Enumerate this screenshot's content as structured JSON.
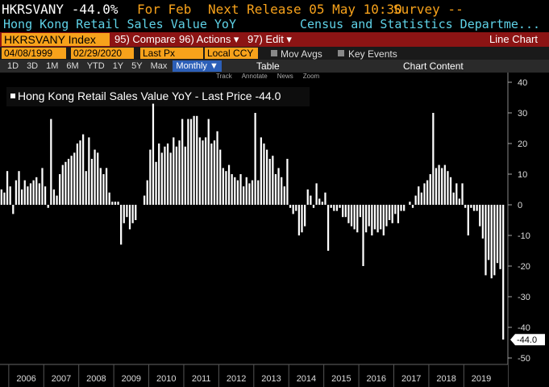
{
  "header": {
    "ticker_quote": "HKRSVANY -44.0%",
    "period": "For Feb",
    "next_release": "Next Release 05 May 10:30",
    "survey": "Survey --",
    "description": "Hong Kong Retail Sales Value YoY",
    "source": "Census and Statistics Departme..."
  },
  "toolbar": {
    "security": "HKRSVANY Index",
    "buttons": [
      "95) Compare",
      "96) Actions ▾",
      "97) Edit ▾"
    ],
    "view": "Line Chart",
    "start_date": "04/08/1999",
    "end_date": "02/29/2020",
    "field": "Last Px",
    "currency": "Local CCY",
    "mov_avgs": "Mov Avgs",
    "key_events": "Key Events",
    "ranges": [
      "1D",
      "3D",
      "1M",
      "6M",
      "YTD",
      "1Y",
      "5Y",
      "Max"
    ],
    "frequency": "Monthly ▼",
    "table": "Table",
    "chart_content": "Chart Content",
    "tools": [
      "Track",
      "Annotate",
      "News",
      "Zoom"
    ]
  },
  "chart_data": {
    "type": "bar",
    "legend": "Hong Kong Retail Sales Value YoY - Last Price -44.0",
    "last_price_label": "-44.0",
    "color": "#ffffff",
    "x": [
      "2005-10",
      "2005-11",
      "2005-12",
      "2006-01",
      "2006-02",
      "2006-03",
      "2006-04",
      "2006-05",
      "2006-06",
      "2006-07",
      "2006-08",
      "2006-09",
      "2006-10",
      "2006-11",
      "2006-12",
      "2007-01",
      "2007-02",
      "2007-03",
      "2007-04",
      "2007-05",
      "2007-06",
      "2007-07",
      "2007-08",
      "2007-09",
      "2007-10",
      "2007-11",
      "2007-12",
      "2008-01",
      "2008-02",
      "2008-03",
      "2008-04",
      "2008-05",
      "2008-06",
      "2008-07",
      "2008-08",
      "2008-09",
      "2008-10",
      "2008-11",
      "2008-12",
      "2009-01",
      "2009-02",
      "2009-03",
      "2009-04",
      "2009-05",
      "2009-06",
      "2009-07",
      "2009-08",
      "2009-09",
      "2009-10",
      "2009-11",
      "2009-12",
      "2010-01",
      "2010-02",
      "2010-03",
      "2010-04",
      "2010-05",
      "2010-06",
      "2010-07",
      "2010-08",
      "2010-09",
      "2010-10",
      "2010-11",
      "2010-12",
      "2011-01",
      "2011-02",
      "2011-03",
      "2011-04",
      "2011-05",
      "2011-06",
      "2011-07",
      "2011-08",
      "2011-09",
      "2011-10",
      "2011-11",
      "2011-12",
      "2012-01",
      "2012-02",
      "2012-03",
      "2012-04",
      "2012-05",
      "2012-06",
      "2012-07",
      "2012-08",
      "2012-09",
      "2012-10",
      "2012-11",
      "2012-12",
      "2013-01",
      "2013-02",
      "2013-03",
      "2013-04",
      "2013-05",
      "2013-06",
      "2013-07",
      "2013-08",
      "2013-09",
      "2013-10",
      "2013-11",
      "2013-12",
      "2014-01",
      "2014-02",
      "2014-03",
      "2014-04",
      "2014-05",
      "2014-06",
      "2014-07",
      "2014-08",
      "2014-09",
      "2014-10",
      "2014-11",
      "2014-12",
      "2015-01",
      "2015-02",
      "2015-03",
      "2015-04",
      "2015-05",
      "2015-06",
      "2015-07",
      "2015-08",
      "2015-09",
      "2015-10",
      "2015-11",
      "2015-12",
      "2016-01",
      "2016-02",
      "2016-03",
      "2016-04",
      "2016-05",
      "2016-06",
      "2016-07",
      "2016-08",
      "2016-09",
      "2016-10",
      "2016-11",
      "2016-12",
      "2017-01",
      "2017-02",
      "2017-03",
      "2017-04",
      "2017-05",
      "2017-06",
      "2017-07",
      "2017-08",
      "2017-09",
      "2017-10",
      "2017-11",
      "2017-12",
      "2018-01",
      "2018-02",
      "2018-03",
      "2018-04",
      "2018-05",
      "2018-06",
      "2018-07",
      "2018-08",
      "2018-09",
      "2018-10",
      "2018-11",
      "2018-12",
      "2019-01",
      "2019-02",
      "2019-03",
      "2019-04",
      "2019-05",
      "2019-06",
      "2019-07",
      "2019-08",
      "2019-09",
      "2019-10",
      "2019-11",
      "2019-12",
      "2020-01",
      "2020-02"
    ],
    "values": [
      5,
      4,
      11,
      6,
      -3,
      8,
      11,
      5,
      8,
      6,
      7,
      8,
      9,
      7,
      12,
      6,
      -1,
      28,
      5,
      3,
      10,
      13,
      14,
      15,
      16,
      17,
      20,
      21,
      23,
      11,
      22,
      15,
      18,
      17,
      12,
      10,
      12,
      4,
      1,
      1,
      1,
      -13,
      -6,
      -4,
      -8,
      -6,
      -5,
      0,
      0,
      3,
      8,
      18,
      33,
      14,
      20,
      17,
      19,
      20,
      17,
      22,
      19,
      21,
      28,
      19,
      28,
      28,
      29,
      29,
      22,
      21,
      22,
      28,
      20,
      21,
      24,
      18,
      12,
      11,
      13,
      10,
      9,
      8,
      10,
      6,
      9,
      7,
      8,
      30,
      8,
      22,
      20,
      18,
      15,
      16,
      10,
      12,
      9,
      6,
      15,
      -1,
      -3,
      -2,
      -10,
      -9,
      -7,
      5,
      3,
      -1,
      7,
      2,
      1,
      4,
      -15,
      -1,
      -2,
      -2,
      -1,
      -4,
      -4,
      -6,
      -7,
      -8,
      -9,
      -4,
      -20,
      -9,
      -7,
      -10,
      -8,
      -9,
      -8,
      -10,
      -7,
      -5,
      -6,
      -3,
      -6,
      -2,
      -2,
      0,
      1,
      -1,
      3,
      6,
      4,
      7,
      8,
      10,
      30,
      12,
      13,
      12,
      13,
      11,
      9,
      4,
      7,
      2,
      7,
      -1,
      -10,
      -1,
      -2,
      -2,
      -7,
      -11,
      -23,
      -18,
      -24,
      -23,
      -19,
      -21,
      -44
    ],
    "xlim": [
      "2005-10",
      "2020-03"
    ],
    "xticks": [
      2006,
      2007,
      2008,
      2009,
      2010,
      2011,
      2012,
      2013,
      2014,
      2015,
      2016,
      2017,
      2018,
      2019
    ],
    "ylim": [
      -51.5,
      42.5
    ],
    "yticks": [
      40,
      30,
      20,
      10,
      0,
      -10,
      -20,
      -30,
      -40,
      -50
    ]
  }
}
